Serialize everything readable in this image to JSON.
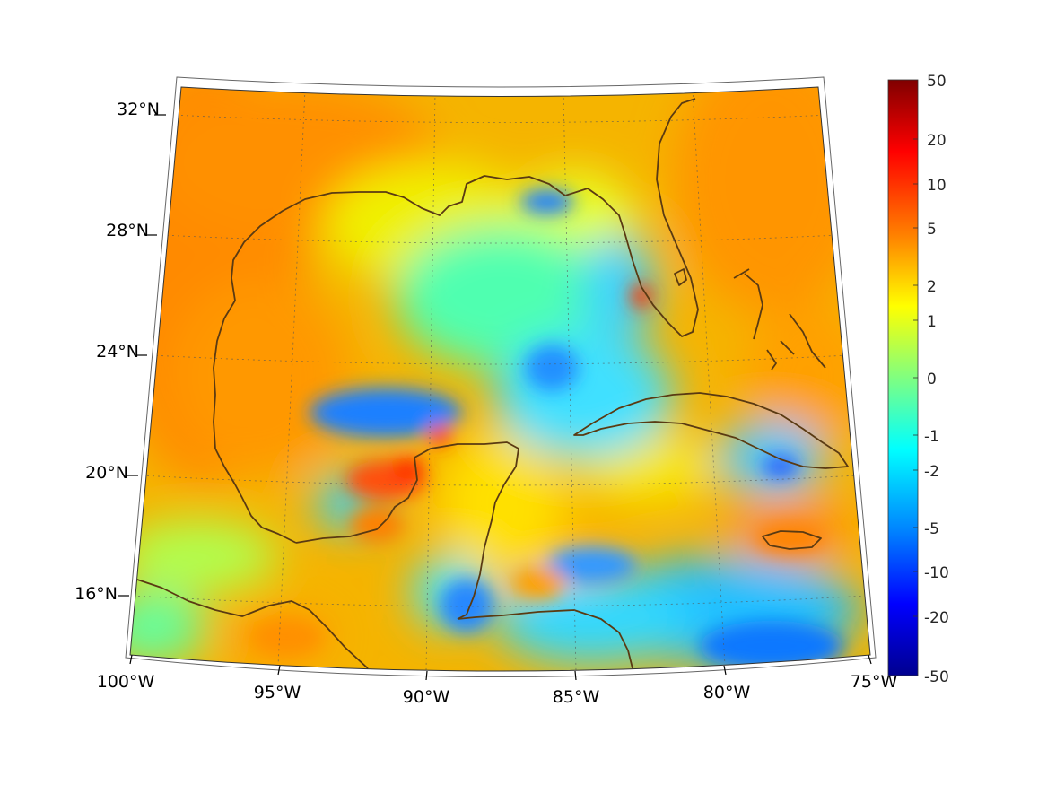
{
  "map": {
    "type": "geographic field map",
    "region": "Gulf of Mexico and Caribbean",
    "projection": "conic",
    "lon_range": [
      -100,
      -75
    ],
    "lat_range": [
      14,
      33
    ],
    "lon_ticks": [
      "100°W",
      "95°W",
      "90°W",
      "85°W",
      "80°W",
      "75°W"
    ],
    "lat_ticks": [
      "16°N",
      "20°N",
      "24°N",
      "28°N",
      "32°N"
    ],
    "grid": true,
    "coastline_color": "#5a3a12",
    "features": [
      "Gulf Coast",
      "Florida",
      "Yucatan Peninsula",
      "Cuba",
      "Jamaica",
      "Bahamas",
      "Central America"
    ]
  },
  "colorbar": {
    "colormap": "jet",
    "position": "right",
    "ticks": [
      "50",
      "20",
      "10",
      "5",
      "2",
      "1",
      "0",
      "-1",
      "-2",
      "-5",
      "-10",
      "-20",
      "-50"
    ],
    "range": [
      -50,
      50
    ],
    "colors": [
      "#00008f",
      "#0000ff",
      "#00ffff",
      "#80ff80",
      "#ffff00",
      "#ff8000",
      "#ff0000",
      "#800000"
    ]
  },
  "field_features": {
    "background_values": "mostly 1 to 5 over land and northern/western Gulf",
    "negative_regions": [
      "central Gulf near 22°N 90°W",
      "Caribbean south of Cuba",
      "NE Gulf near 29.5°N 85°W",
      "Gulf of Honduras"
    ],
    "positive_hotspots": [
      "Bay of Campeche near 20°N 91°W",
      "north Yucatan 21°N 90°W",
      "SW Florida 26°N 82°W"
    ]
  }
}
